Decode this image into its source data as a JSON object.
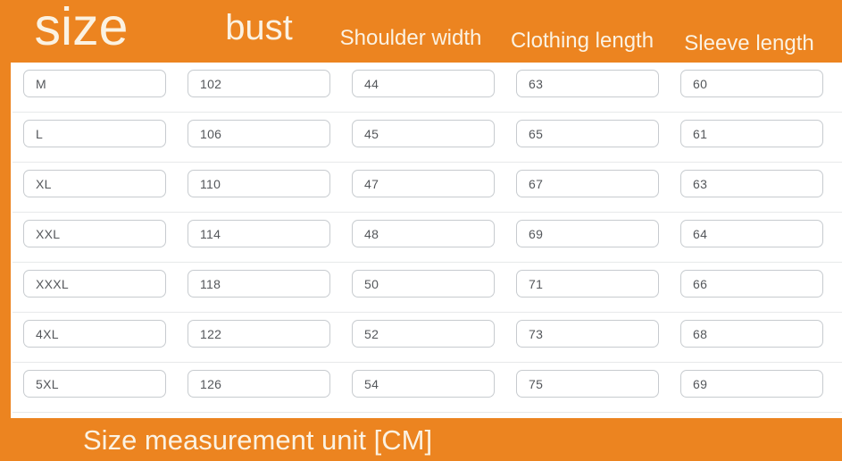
{
  "theme": {
    "accent_orange": "#EC8420",
    "header_text": "#FBF2E2",
    "cell_border": "#C7CBCF",
    "cell_text": "#54575B",
    "divider": "#E7E9EA",
    "background": "#FFFFFF"
  },
  "header": {
    "columns": [
      {
        "label": "size"
      },
      {
        "label": "bust"
      },
      {
        "label": "Shoulder width"
      },
      {
        "label": "Clothing length"
      },
      {
        "label": "Sleeve length"
      }
    ]
  },
  "table": {
    "rows": [
      {
        "cells": [
          "M",
          "102",
          "44",
          "63",
          "60"
        ]
      },
      {
        "cells": [
          "L",
          "106",
          "45",
          "65",
          "61"
        ]
      },
      {
        "cells": [
          "XL",
          "110",
          "47",
          "67",
          "63"
        ]
      },
      {
        "cells": [
          "XXL",
          "114",
          "48",
          "69",
          "64"
        ]
      },
      {
        "cells": [
          "XXXL",
          "118",
          "50",
          "71",
          "66"
        ]
      },
      {
        "cells": [
          "4XL",
          "122",
          "52",
          "73",
          "68"
        ]
      },
      {
        "cells": [
          "5XL",
          "126",
          "54",
          "75",
          "69"
        ]
      }
    ]
  },
  "footer": {
    "note": "Size measurement unit [CM]"
  },
  "chart_data": {
    "type": "table",
    "title": "size",
    "columns": [
      "size",
      "bust",
      "Shoulder width",
      "Clothing length",
      "Sleeve length"
    ],
    "rows": [
      [
        "M",
        102,
        44,
        63,
        60
      ],
      [
        "L",
        106,
        45,
        65,
        61
      ],
      [
        "XL",
        110,
        47,
        67,
        63
      ],
      [
        "XXL",
        114,
        48,
        69,
        64
      ],
      [
        "XXXL",
        118,
        50,
        71,
        66
      ],
      [
        "4XL",
        122,
        52,
        73,
        68
      ],
      [
        "5XL",
        126,
        54,
        75,
        69
      ]
    ],
    "units": "CM",
    "note": "Size measurement unit [CM]"
  }
}
